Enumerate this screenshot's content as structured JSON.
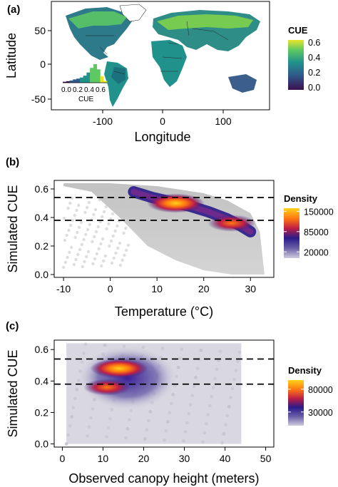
{
  "colors": {
    "cue_scale": [
      "#3b0f4f",
      "#2f5b8a",
      "#21918c",
      "#5ec962",
      "#e8e52b"
    ],
    "density_scale": [
      "#cfcbdc",
      "#6a5fa8",
      "#2a1a8a",
      "#c01f45",
      "#ff7a10",
      "#ffd21a"
    ],
    "land": "#1f9a7a",
    "background_points": "#bdbdbd",
    "reference_lines": "#000000"
  },
  "panels": {
    "a": {
      "label": "(a)",
      "xlabel": "Longitude",
      "ylabel": "Latitude",
      "legend_title": "CUE",
      "inset_xlabel": "CUE"
    },
    "b": {
      "label": "(b)",
      "xlabel": "Temperature (°C)",
      "ylabel": "Simulated CUE",
      "legend_title": "Density"
    },
    "c": {
      "label": "(c)",
      "xlabel": "Observed canopy height (meters)",
      "ylabel": "Simulated CUE",
      "legend_title": "Density"
    }
  },
  "chart_data": [
    {
      "id": "a",
      "type": "heatmap",
      "subtype": "map",
      "xlabel": "Longitude",
      "ylabel": "Latitude",
      "x_ticks": [
        -100,
        0,
        100
      ],
      "y_ticks": [
        -50,
        0,
        50
      ],
      "xlim": [
        -180,
        180
      ],
      "ylim": [
        -58,
        84
      ],
      "colorbar": {
        "title": "CUE",
        "ticks": [
          0.0,
          0.2,
          0.4,
          0.6
        ],
        "tick_labels": [
          "0.0",
          "0.2",
          "0.4",
          "0.6"
        ],
        "range": [
          0.0,
          0.65
        ]
      },
      "inset_histogram": {
        "xlabel": "CUE",
        "tick_labels": [
          "0.0",
          "0.2",
          "0.4",
          "0.6"
        ],
        "x": [
          0.0,
          0.05,
          0.1,
          0.15,
          0.2,
          0.25,
          0.3,
          0.35,
          0.4,
          0.45,
          0.5,
          0.55,
          0.6
        ],
        "relative_frequency": [
          0.05,
          0.08,
          0.12,
          0.18,
          0.22,
          0.28,
          0.38,
          0.55,
          0.8,
          1.0,
          0.72,
          0.35,
          0.1
        ]
      }
    },
    {
      "id": "b",
      "type": "scatter",
      "subtype": "density",
      "xlabel": "Temperature (°C)",
      "ylabel": "Simulated CUE",
      "xlim": [
        -12,
        35
      ],
      "ylim": [
        -0.02,
        0.66
      ],
      "x_ticks": [
        -10,
        0,
        10,
        20,
        30
      ],
      "y_ticks": [
        0.0,
        0.2,
        0.4,
        0.6
      ],
      "y_tick_labels": [
        "0.0",
        "0.2",
        "0.4",
        "0.6"
      ],
      "reference_lines_y": [
        0.54,
        0.38
      ],
      "density_ticks": [
        20000,
        85000,
        150000
      ],
      "density_range": [
        0,
        160000
      ],
      "background_cloud_upper": {
        "x": [
          -10,
          0,
          10,
          20,
          25,
          30,
          32,
          33
        ],
        "y": [
          0.64,
          0.64,
          0.62,
          0.57,
          0.52,
          0.43,
          0.3,
          0.0
        ]
      },
      "background_cloud_lower": {
        "x": [
          -10,
          -4,
          2,
          8,
          14,
          20,
          26,
          30,
          33
        ],
        "y": [
          0.62,
          0.58,
          0.4,
          0.2,
          0.1,
          0.03,
          0.0,
          0.0,
          0.0
        ]
      },
      "density_ridge": {
        "x": [
          5,
          9,
          13,
          17,
          21,
          25,
          28,
          30
        ],
        "y": [
          0.58,
          0.54,
          0.51,
          0.48,
          0.44,
          0.39,
          0.34,
          0.3
        ]
      },
      "density_peaks": [
        {
          "x": 14,
          "y": 0.5,
          "density": 150000
        },
        {
          "x": 26,
          "y": 0.36,
          "density": 110000
        }
      ]
    },
    {
      "id": "c",
      "type": "scatter",
      "subtype": "density",
      "xlabel": "Observed canopy height (meters)",
      "ylabel": "Simulated CUE",
      "xlim": [
        -2,
        52
      ],
      "ylim": [
        -0.02,
        0.66
      ],
      "x_ticks": [
        0,
        10,
        20,
        30,
        40,
        50
      ],
      "y_ticks": [
        0.0,
        0.2,
        0.4,
        0.6
      ],
      "y_tick_labels": [
        "0.0",
        "0.2",
        "0.4",
        "0.6"
      ],
      "reference_lines_y": [
        0.54,
        0.38
      ],
      "density_ticks": [
        30000,
        80000
      ],
      "density_range": [
        0,
        100000
      ],
      "background_cloud": {
        "x_min": 1,
        "x_max": 44,
        "y_min": 0.0,
        "y_max": 0.64
      },
      "density_peaks": [
        {
          "x": 14,
          "y": 0.48,
          "density": 95000
        },
        {
          "x": 11,
          "y": 0.36,
          "density": 65000
        }
      ]
    }
  ]
}
